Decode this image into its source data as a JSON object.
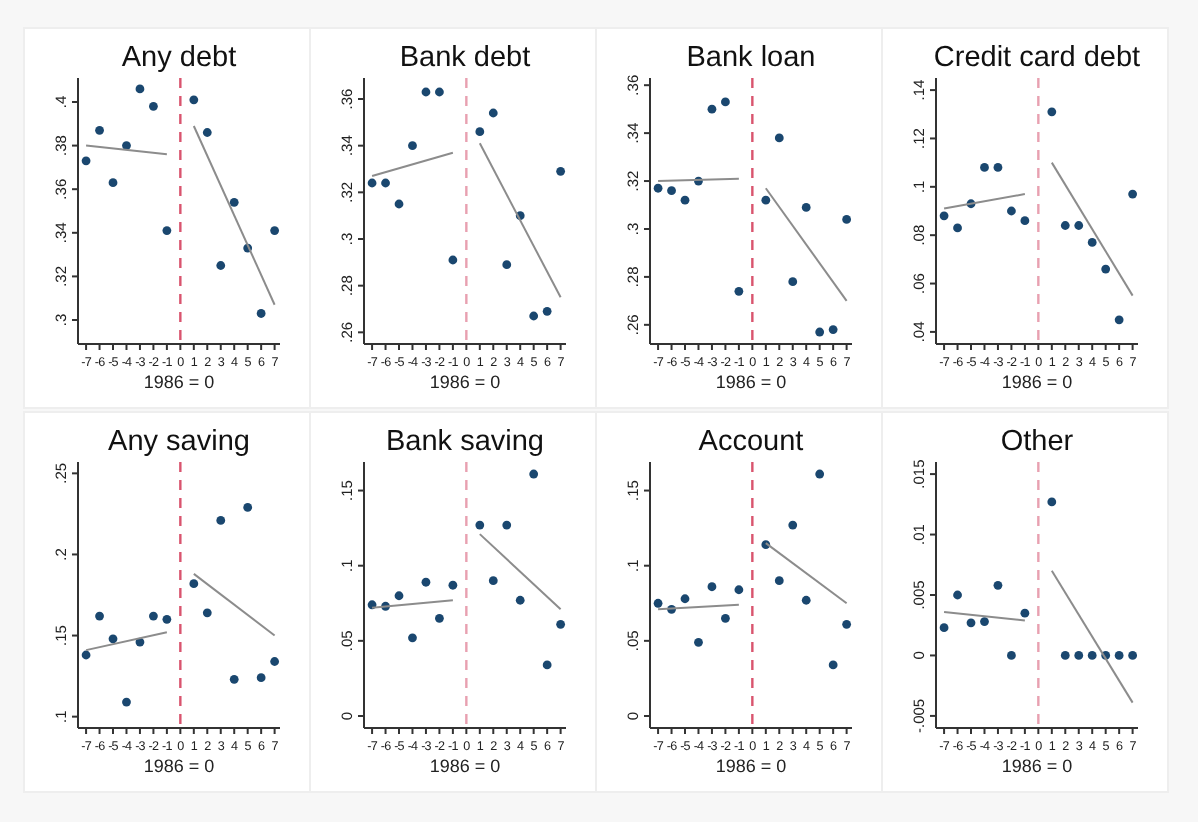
{
  "chart_data": [
    {
      "type": "scatter",
      "title": "Any debt",
      "xlabel": "1986 = 0",
      "xlim": [
        -7.6,
        7.4
      ],
      "xticks": [
        -7,
        -6,
        -5,
        -4,
        -3,
        -2,
        -1,
        0,
        1,
        2,
        3,
        4,
        5,
        6,
        7
      ],
      "ylim": [
        0.289,
        0.411
      ],
      "yticks": [
        {
          "value": 0.3,
          "label": ".3"
        },
        {
          "value": 0.32,
          "label": ".32"
        },
        {
          "value": 0.34,
          "label": ".34"
        },
        {
          "value": 0.36,
          "label": ".36"
        },
        {
          "value": 0.38,
          "label": ".38"
        },
        {
          "value": 0.4,
          "label": ".4"
        }
      ],
      "ref_lines": [
        {
          "axis": "x",
          "value": 0,
          "color": "#d9546e",
          "line_style": "dashed"
        }
      ],
      "series": [
        {
          "color": "#1a476f",
          "marker": "circle",
          "x": [
            -7,
            -6,
            -5,
            -4,
            -3,
            -2,
            -1,
            1,
            2,
            3,
            4,
            5,
            6,
            7
          ],
          "values": [
            0.373,
            0.387,
            0.363,
            0.38,
            0.406,
            0.398,
            0.341,
            0.401,
            0.386,
            0.325,
            0.354,
            0.333,
            0.303,
            0.341
          ]
        },
        {
          "type": "line",
          "color": "#8c8c8c",
          "x": [
            -7,
            -1
          ],
          "values": [
            0.38,
            0.376
          ]
        },
        {
          "type": "line",
          "color": "#8c8c8c",
          "x": [
            1,
            7
          ],
          "values": [
            0.389,
            0.307
          ]
        }
      ]
    },
    {
      "type": "scatter",
      "title": "Bank debt",
      "xlabel": "1986 = 0",
      "xlim": [
        -7.6,
        7.4
      ],
      "xticks": [
        -7,
        -6,
        -5,
        -4,
        -3,
        -2,
        -1,
        0,
        1,
        2,
        3,
        4,
        5,
        6,
        7
      ],
      "ylim": [
        0.255,
        0.369
      ],
      "yticks": [
        {
          "value": 0.26,
          "label": ".26"
        },
        {
          "value": 0.28,
          "label": ".28"
        },
        {
          "value": 0.3,
          "label": ".3"
        },
        {
          "value": 0.32,
          "label": ".32"
        },
        {
          "value": 0.34,
          "label": ".34"
        },
        {
          "value": 0.36,
          "label": ".36"
        }
      ],
      "ref_lines": [
        {
          "axis": "x",
          "value": 0,
          "color": "#e8a0b0",
          "line_style": "dashed"
        }
      ],
      "series": [
        {
          "color": "#1a476f",
          "marker": "circle",
          "x": [
            -7,
            -6,
            -5,
            -4,
            -3,
            -2,
            -1,
            1,
            2,
            3,
            4,
            5,
            6,
            7
          ],
          "values": [
            0.324,
            0.324,
            0.315,
            0.34,
            0.363,
            0.363,
            0.291,
            0.346,
            0.354,
            0.289,
            0.31,
            0.267,
            0.269,
            0.329
          ]
        },
        {
          "type": "line",
          "color": "#8c8c8c",
          "x": [
            -7,
            -1
          ],
          "values": [
            0.327,
            0.337
          ]
        },
        {
          "type": "line",
          "color": "#8c8c8c",
          "x": [
            1,
            7
          ],
          "values": [
            0.341,
            0.275
          ]
        }
      ]
    },
    {
      "type": "scatter",
      "title": "Bank loan",
      "xlabel": "1986 = 0",
      "xlim": [
        -7.6,
        7.4
      ],
      "xticks": [
        -7,
        -6,
        -5,
        -4,
        -3,
        -2,
        -1,
        0,
        1,
        2,
        3,
        4,
        5,
        6,
        7
      ],
      "ylim": [
        0.252,
        0.363
      ],
      "yticks": [
        {
          "value": 0.26,
          "label": ".26"
        },
        {
          "value": 0.28,
          "label": ".28"
        },
        {
          "value": 0.3,
          "label": ".3"
        },
        {
          "value": 0.32,
          "label": ".32"
        },
        {
          "value": 0.34,
          "label": ".34"
        },
        {
          "value": 0.36,
          "label": ".36"
        }
      ],
      "ref_lines": [
        {
          "axis": "x",
          "value": 0,
          "color": "#d9546e",
          "line_style": "dashed"
        }
      ],
      "series": [
        {
          "color": "#1a476f",
          "marker": "circle",
          "x": [
            -7,
            -6,
            -5,
            -4,
            -3,
            -2,
            -1,
            1,
            2,
            3,
            4,
            5,
            6,
            7
          ],
          "values": [
            0.317,
            0.316,
            0.312,
            0.32,
            0.35,
            0.353,
            0.274,
            0.312,
            0.338,
            0.278,
            0.309,
            0.257,
            0.258,
            0.304
          ]
        },
        {
          "type": "line",
          "color": "#8c8c8c",
          "x": [
            -7,
            -1
          ],
          "values": [
            0.32,
            0.321
          ]
        },
        {
          "type": "line",
          "color": "#8c8c8c",
          "x": [
            1,
            7
          ],
          "values": [
            0.317,
            0.27
          ]
        }
      ]
    },
    {
      "type": "scatter",
      "title": "Credit card debt",
      "xlabel": "1986 = 0",
      "xlim": [
        -7.6,
        7.4
      ],
      "xticks": [
        -7,
        -6,
        -5,
        -4,
        -3,
        -2,
        -1,
        0,
        1,
        2,
        3,
        4,
        5,
        6,
        7
      ],
      "ylim": [
        0.035,
        0.145
      ],
      "yticks": [
        {
          "value": 0.04,
          "label": ".04"
        },
        {
          "value": 0.06,
          "label": ".06"
        },
        {
          "value": 0.08,
          "label": ".08"
        },
        {
          "value": 0.1,
          "label": ".1"
        },
        {
          "value": 0.12,
          "label": ".12"
        },
        {
          "value": 0.14,
          "label": ".14"
        }
      ],
      "ref_lines": [
        {
          "axis": "x",
          "value": 0,
          "color": "#e8a0b0",
          "line_style": "dashed"
        }
      ],
      "series": [
        {
          "color": "#1a476f",
          "marker": "circle",
          "x": [
            -7,
            -6,
            -5,
            -4,
            -3,
            -2,
            -1,
            1,
            2,
            3,
            4,
            5,
            6,
            7
          ],
          "values": [
            0.088,
            0.083,
            0.093,
            0.108,
            0.108,
            0.09,
            0.086,
            0.131,
            0.084,
            0.084,
            0.077,
            0.066,
            0.045,
            0.097
          ]
        },
        {
          "type": "line",
          "color": "#8c8c8c",
          "x": [
            -7,
            -1
          ],
          "values": [
            0.091,
            0.097
          ]
        },
        {
          "type": "line",
          "color": "#8c8c8c",
          "x": [
            1,
            7
          ],
          "values": [
            0.11,
            0.055
          ]
        }
      ]
    },
    {
      "type": "scatter",
      "title": "Any saving",
      "xlabel": "1986 = 0",
      "xlim": [
        -7.6,
        7.4
      ],
      "xticks": [
        -7,
        -6,
        -5,
        -4,
        -3,
        -2,
        -1,
        0,
        1,
        2,
        3,
        4,
        5,
        6,
        7
      ],
      "ylim": [
        0.093,
        0.257
      ],
      "yticks": [
        {
          "value": 0.1,
          "label": ".1"
        },
        {
          "value": 0.15,
          "label": ".15"
        },
        {
          "value": 0.2,
          "label": ".2"
        },
        {
          "value": 0.25,
          "label": ".25"
        }
      ],
      "ref_lines": [
        {
          "axis": "x",
          "value": 0,
          "color": "#d9546e",
          "line_style": "dashed"
        }
      ],
      "series": [
        {
          "color": "#1a476f",
          "marker": "circle",
          "x": [
            -7,
            -6,
            -5,
            -4,
            -3,
            -2,
            -1,
            1,
            2,
            3,
            4,
            5,
            6,
            7
          ],
          "values": [
            0.138,
            0.162,
            0.148,
            0.109,
            0.146,
            0.162,
            0.16,
            0.182,
            0.164,
            0.221,
            0.123,
            0.229,
            0.124,
            0.134
          ]
        },
        {
          "type": "line",
          "color": "#8c8c8c",
          "x": [
            -7,
            -1
          ],
          "values": [
            0.141,
            0.152
          ]
        },
        {
          "type": "line",
          "color": "#8c8c8c",
          "x": [
            1,
            7
          ],
          "values": [
            0.188,
            0.15
          ]
        }
      ]
    },
    {
      "type": "scatter",
      "title": "Bank saving",
      "xlabel": "1986 = 0",
      "xlim": [
        -7.6,
        7.4
      ],
      "xticks": [
        -7,
        -6,
        -5,
        -4,
        -3,
        -2,
        -1,
        0,
        1,
        2,
        3,
        4,
        5,
        6,
        7
      ],
      "ylim": [
        -0.008,
        0.169
      ],
      "yticks": [
        {
          "value": 0,
          "label": "0"
        },
        {
          "value": 0.05,
          "label": ".05"
        },
        {
          "value": 0.1,
          "label": ".1"
        },
        {
          "value": 0.15,
          "label": ".15"
        }
      ],
      "ref_lines": [
        {
          "axis": "x",
          "value": 0,
          "color": "#e8a0b0",
          "line_style": "dashed"
        }
      ],
      "series": [
        {
          "color": "#1a476f",
          "marker": "circle",
          "x": [
            -7,
            -6,
            -5,
            -4,
            -3,
            -2,
            -1,
            1,
            2,
            3,
            4,
            5,
            6,
            7
          ],
          "values": [
            0.074,
            0.073,
            0.08,
            0.052,
            0.089,
            0.065,
            0.087,
            0.127,
            0.09,
            0.127,
            0.077,
            0.161,
            0.034,
            0.061
          ]
        },
        {
          "type": "line",
          "color": "#8c8c8c",
          "x": [
            -7,
            -1
          ],
          "values": [
            0.072,
            0.077
          ]
        },
        {
          "type": "line",
          "color": "#8c8c8c",
          "x": [
            1,
            7
          ],
          "values": [
            0.121,
            0.071
          ]
        }
      ]
    },
    {
      "type": "scatter",
      "title": "Account",
      "xlabel": "1986 = 0",
      "xlim": [
        -7.6,
        7.4
      ],
      "xticks": [
        -7,
        -6,
        -5,
        -4,
        -3,
        -2,
        -1,
        0,
        1,
        2,
        3,
        4,
        5,
        6,
        7
      ],
      "ylim": [
        -0.008,
        0.169
      ],
      "yticks": [
        {
          "value": 0,
          "label": "0"
        },
        {
          "value": 0.05,
          "label": ".05"
        },
        {
          "value": 0.1,
          "label": ".1"
        },
        {
          "value": 0.15,
          "label": ".15"
        }
      ],
      "ref_lines": [
        {
          "axis": "x",
          "value": 0,
          "color": "#d9546e",
          "line_style": "dashed"
        }
      ],
      "series": [
        {
          "color": "#1a476f",
          "marker": "circle",
          "x": [
            -7,
            -6,
            -5,
            -4,
            -3,
            -2,
            -1,
            1,
            2,
            3,
            4,
            5,
            6,
            7
          ],
          "values": [
            0.075,
            0.071,
            0.078,
            0.049,
            0.086,
            0.065,
            0.084,
            0.114,
            0.09,
            0.127,
            0.077,
            0.161,
            0.034,
            0.061
          ]
        },
        {
          "type": "line",
          "color": "#8c8c8c",
          "x": [
            -7,
            -1
          ],
          "values": [
            0.071,
            0.074
          ]
        },
        {
          "type": "line",
          "color": "#8c8c8c",
          "x": [
            1,
            7
          ],
          "values": [
            0.115,
            0.075
          ]
        }
      ]
    },
    {
      "type": "scatter",
      "title": "Other",
      "xlabel": "1986 = 0",
      "xlim": [
        -7.6,
        7.4
      ],
      "xticks": [
        -7,
        -6,
        -5,
        -4,
        -3,
        -2,
        -1,
        0,
        1,
        2,
        3,
        4,
        5,
        6,
        7
      ],
      "ylim": [
        -0.006,
        0.016
      ],
      "yticks": [
        {
          "value": -0.005,
          "label": "-.005"
        },
        {
          "value": 0,
          "label": "0"
        },
        {
          "value": 0.005,
          "label": ".005"
        },
        {
          "value": 0.01,
          "label": ".01"
        },
        {
          "value": 0.015,
          "label": ".015"
        }
      ],
      "ref_lines": [
        {
          "axis": "x",
          "value": 0,
          "color": "#e8a0b0",
          "line_style": "dashed"
        }
      ],
      "series": [
        {
          "color": "#1a476f",
          "marker": "circle",
          "x": [
            -7,
            -6,
            -5,
            -4,
            -3,
            -2,
            -1,
            1,
            2,
            3,
            4,
            5,
            6,
            7
          ],
          "values": [
            0.0023,
            0.005,
            0.0027,
            0.0028,
            0.0058,
            0,
            0.0035,
            0.0127,
            0,
            0,
            0,
            0,
            0,
            0
          ]
        },
        {
          "type": "line",
          "color": "#8c8c8c",
          "x": [
            -7,
            -1
          ],
          "values": [
            0.0036,
            0.0029
          ]
        },
        {
          "type": "line",
          "color": "#8c8c8c",
          "x": [
            1,
            7
          ],
          "values": [
            0.007,
            -0.0039
          ]
        }
      ]
    }
  ]
}
